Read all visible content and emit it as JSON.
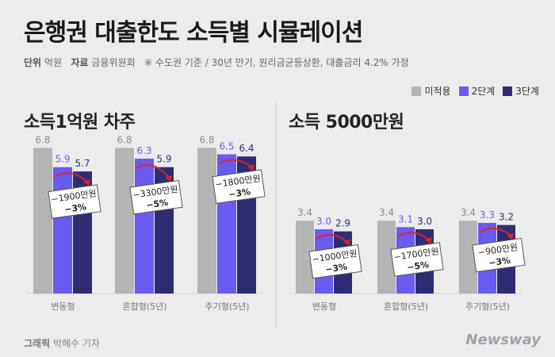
{
  "title": "은행권 대출한도 소득별 시뮬레이션",
  "subline": {
    "unit_label": "단위",
    "unit_value": "억원",
    "source_label": "자료",
    "source_value": "금융위원회",
    "note": "※ 수도권 기준 / 30년 만기, 원리금균등상환, 대출금리 4.2% 가정"
  },
  "legend": [
    {
      "name": "미적용",
      "color": "#b4b4b4"
    },
    {
      "name": "2단계",
      "color": "#6a5cf0"
    },
    {
      "name": "3단계",
      "color": "#2e2d73"
    }
  ],
  "footer": {
    "credit_label": "그래픽",
    "credit_name": "박혜수 기자",
    "brand": "Newsway"
  },
  "chart_data": [
    {
      "type": "bar",
      "title": "소득1억원 차주",
      "categories": [
        "변동형",
        "혼합형(5년)",
        "주기형(5년)"
      ],
      "series": [
        {
          "name": "미적용",
          "values": [
            6.8,
            6.8,
            6.8
          ]
        },
        {
          "name": "2단계",
          "values": [
            5.9,
            6.3,
            6.5
          ]
        },
        {
          "name": "3단계",
          "values": [
            5.7,
            5.9,
            6.4
          ]
        }
      ],
      "annotations": [
        {
          "amount": "−1900만원",
          "pct": "−3%"
        },
        {
          "amount": "−3300만원",
          "pct": "−5%"
        },
        {
          "amount": "−1800만원",
          "pct": "−3%"
        }
      ]
    },
    {
      "type": "bar",
      "title": "소득 5000만원",
      "categories": [
        "변동형",
        "혼합형(5년)",
        "주기형(5년)"
      ],
      "series": [
        {
          "name": "미적용",
          "values": [
            3.4,
            3.4,
            3.4
          ]
        },
        {
          "name": "2단계",
          "values": [
            3.0,
            3.1,
            3.3
          ]
        },
        {
          "name": "3단계",
          "values": [
            2.9,
            3.0,
            3.2
          ]
        }
      ],
      "annotations": [
        {
          "amount": "−1000만원",
          "pct": "−3%"
        },
        {
          "amount": "−1700만원",
          "pct": "−5%"
        },
        {
          "amount": "−900만원",
          "pct": "−3%"
        }
      ]
    }
  ]
}
